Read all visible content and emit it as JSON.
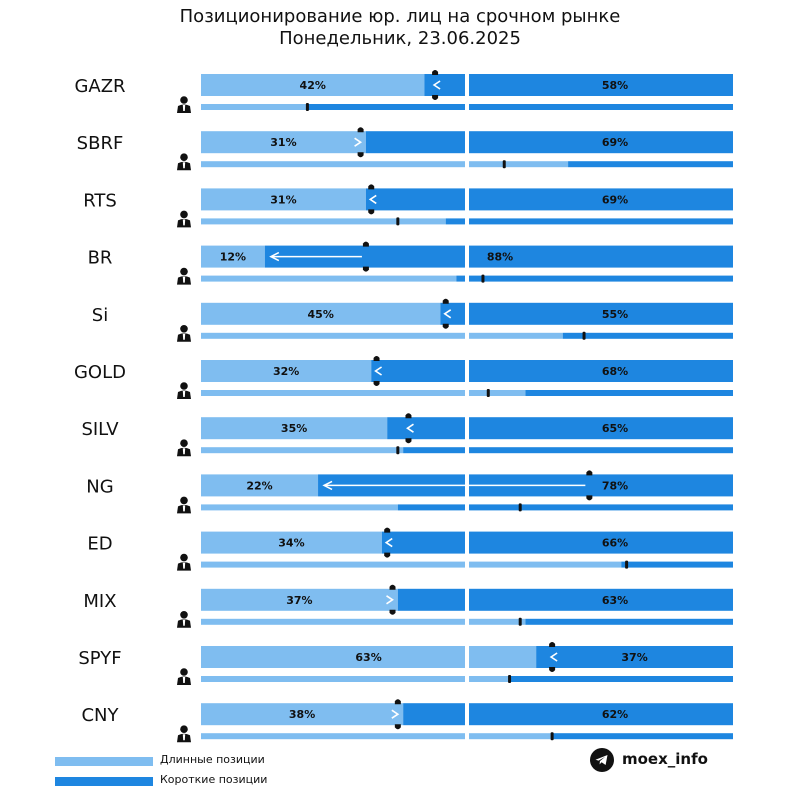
{
  "title": {
    "line1": "Позиционирование юр. лиц на срочном рынке",
    "line2": "Понедельник, 23.06.2025"
  },
  "legend": {
    "long_label": "Длинные позиции",
    "short_label": "Короткие позиции",
    "long_color": "#7fbdf0",
    "short_color": "#1e86e0"
  },
  "brand": {
    "name": "moex_info",
    "icon": "telegram-icon"
  },
  "person_icon": "businessman-icon",
  "chart_data": {
    "type": "bar",
    "title": "Позиционирование юр. лиц на срочном рынке",
    "subtitle": "Понедельник, 23.06.2025",
    "series": [
      {
        "name": "Длинные позиции",
        "color": "#7fbdf0"
      },
      {
        "name": "Короткие позиции",
        "color": "#1e86e0"
      }
    ],
    "rows": [
      {
        "ticker": "GAZR",
        "long": 42,
        "short": 58,
        "long_label": "42%",
        "short_label": "58%",
        "prev_long": 44,
        "change_dir": "up",
        "sub_long": 20,
        "sub_marker": 20
      },
      {
        "ticker": "SBRF",
        "long": 31,
        "short": 69,
        "long_label": "31%",
        "short_label": "69%",
        "prev_long": 30,
        "change_dir": "down",
        "sub_long": 69,
        "sub_marker": 57
      },
      {
        "ticker": "RTS",
        "long": 31,
        "short": 69,
        "long_label": "31%",
        "short_label": "69%",
        "prev_long": 32,
        "change_dir": "up",
        "sub_long": 46,
        "sub_marker": 37
      },
      {
        "ticker": "BR",
        "long": 12,
        "short": 88,
        "long_label": "12%",
        "short_label": "88%",
        "prev_long": 31,
        "change_dir": "up",
        "sub_long": 48,
        "sub_marker": 53
      },
      {
        "ticker": "Si",
        "long": 45,
        "short": 55,
        "long_label": "45%",
        "short_label": "55%",
        "prev_long": 46,
        "change_dir": "up",
        "sub_long": 68,
        "sub_marker": 72
      },
      {
        "ticker": "GOLD",
        "long": 32,
        "short": 68,
        "long_label": "32%",
        "short_label": "68%",
        "prev_long": 33,
        "change_dir": "up",
        "sub_long": 61,
        "sub_marker": 54
      },
      {
        "ticker": "SILV",
        "long": 35,
        "short": 65,
        "long_label": "35%",
        "short_label": "65%",
        "prev_long": 39,
        "change_dir": "up",
        "sub_long": 38,
        "sub_marker": 37
      },
      {
        "ticker": "NG",
        "long": 22,
        "short": 78,
        "long_label": "22%",
        "short_label": "78%",
        "prev_long": 73,
        "change_dir": "up",
        "sub_long": 37,
        "sub_marker": 60
      },
      {
        "ticker": "ED",
        "long": 34,
        "short": 66,
        "long_label": "34%",
        "short_label": "66%",
        "prev_long": 35,
        "change_dir": "up",
        "sub_long": 79,
        "sub_marker": 80
      },
      {
        "ticker": "MIX",
        "long": 37,
        "short": 63,
        "long_label": "37%",
        "short_label": "63%",
        "prev_long": 36,
        "change_dir": "down",
        "sub_long": 61,
        "sub_marker": 60
      },
      {
        "ticker": "SPYF",
        "long": 63,
        "short": 37,
        "long_label": "63%",
        "short_label": "37%",
        "prev_long": 66,
        "change_dir": "up",
        "sub_long": 58,
        "sub_marker": 58
      },
      {
        "ticker": "CNY",
        "long": 38,
        "short": 62,
        "long_label": "38%",
        "short_label": "62%",
        "prev_long": 37,
        "change_dir": "down",
        "sub_long": 66,
        "sub_marker": 66
      }
    ]
  }
}
